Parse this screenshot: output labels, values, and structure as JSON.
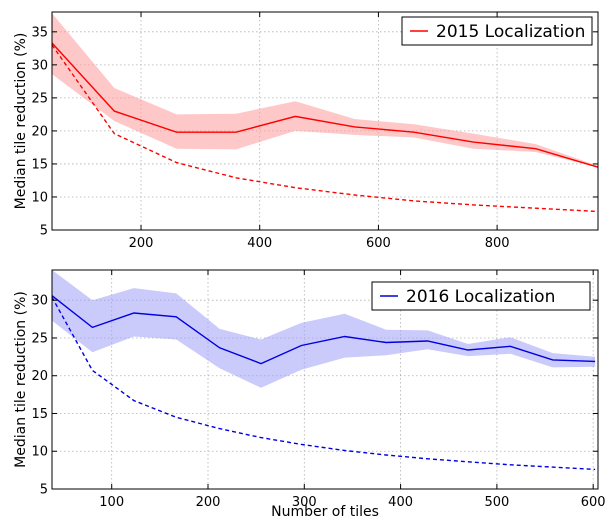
{
  "chart_data": [
    {
      "type": "line",
      "ylabel": "Median tile reduction (%)",
      "xlabel": "",
      "xlim": [
        50,
        970
      ],
      "ylim": [
        5,
        38
      ],
      "xticks": [
        200,
        400,
        600,
        800
      ],
      "yticks": [
        5,
        10,
        15,
        20,
        25,
        30,
        35
      ],
      "grid": true,
      "legend_position": "top-right",
      "color": "#ff0000",
      "band_color": "#ff9a9a",
      "series": [
        {
          "name": "2015 Localization",
          "style": "solid",
          "x": [
            50,
            155,
            260,
            360,
            460,
            560,
            660,
            760,
            865,
            970
          ],
          "y": [
            33.3,
            23.0,
            19.8,
            19.8,
            22.2,
            20.6,
            19.8,
            18.3,
            17.3,
            14.5
          ]
        },
        {
          "style": "dashed",
          "x": [
            50,
            155,
            260,
            360,
            460,
            560,
            660,
            760,
            865,
            970
          ],
          "y": [
            33.0,
            19.6,
            15.2,
            12.9,
            11.4,
            10.3,
            9.4,
            8.8,
            8.3,
            7.8
          ]
        }
      ],
      "band": {
        "x": [
          50,
          155,
          260,
          360,
          460,
          560,
          660,
          760,
          865,
          970
        ],
        "lower": [
          28.6,
          21.5,
          17.3,
          17.2,
          20.0,
          19.4,
          19.0,
          17.3,
          16.8,
          14.5
        ],
        "upper": [
          37.8,
          26.5,
          22.5,
          22.6,
          24.5,
          21.8,
          21.0,
          19.6,
          18.0,
          14.7
        ]
      }
    },
    {
      "type": "line",
      "ylabel": "Median tile reduction (%)",
      "xlabel": "Number of tiles",
      "xlim": [
        38,
        605
      ],
      "ylim": [
        5,
        34
      ],
      "xticks": [
        100,
        200,
        300,
        400,
        500,
        600
      ],
      "yticks": [
        5,
        10,
        15,
        20,
        25,
        30
      ],
      "grid": true,
      "legend_position": "top-right",
      "color": "#0000e0",
      "band_color": "#9f9ff7",
      "series": [
        {
          "name": "2016 Localization",
          "style": "solid",
          "x": [
            38,
            80,
            123,
            167,
            212,
            255,
            297,
            342,
            385,
            428,
            470,
            514,
            558,
            602
          ],
          "y": [
            30.6,
            26.4,
            28.3,
            27.8,
            23.7,
            21.6,
            24.0,
            25.2,
            24.4,
            24.6,
            23.4,
            23.9,
            22.1,
            21.9
          ]
        },
        {
          "style": "dashed",
          "x": [
            38,
            80,
            123,
            167,
            212,
            255,
            297,
            342,
            385,
            428,
            470,
            514,
            558,
            602
          ],
          "y": [
            30.4,
            20.7,
            16.7,
            14.5,
            13.0,
            11.8,
            10.9,
            10.1,
            9.5,
            9.0,
            8.6,
            8.2,
            7.9,
            7.6
          ]
        }
      ],
      "band": {
        "x": [
          38,
          80,
          123,
          167,
          212,
          255,
          297,
          342,
          385,
          428,
          470,
          514,
          558,
          602
        ],
        "lower": [
          27.3,
          23.1,
          25.2,
          24.8,
          21.0,
          18.4,
          20.8,
          22.4,
          22.7,
          23.5,
          22.6,
          22.9,
          21.1,
          21.2
        ],
        "upper": [
          34.0,
          30.0,
          31.6,
          30.9,
          26.2,
          24.8,
          27.0,
          28.2,
          26.1,
          26.0,
          24.2,
          25.1,
          23.0,
          22.5
        ]
      }
    }
  ]
}
